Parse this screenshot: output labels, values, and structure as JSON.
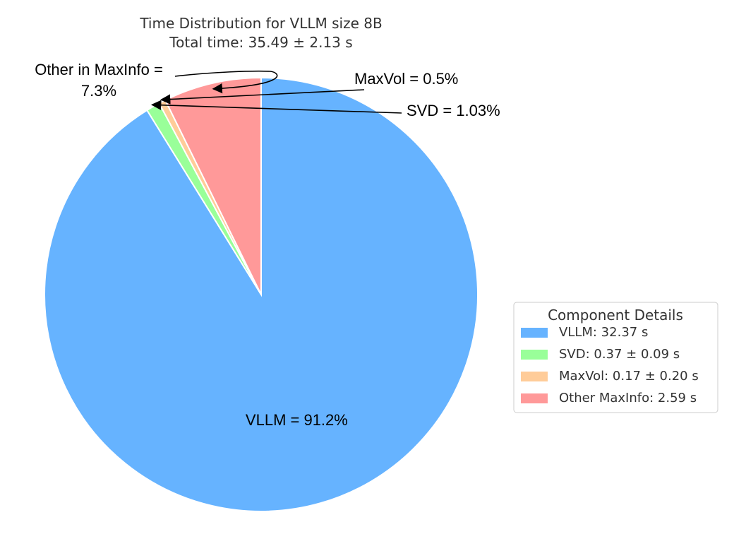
{
  "chart_data": {
    "type": "pie",
    "title": "Time Distribution for VLLM size 8B",
    "subtitle": "Total time: 35.49 ± 2.13 s",
    "start_angle_deg": 90,
    "direction": "clockwise",
    "slices": [
      {
        "name": "VLLM",
        "percent": 91.2,
        "color": "#66b3ff",
        "label": "VLLM  = 91.2%",
        "legend": "VLLM: 32.37 s",
        "label_style": "inside"
      },
      {
        "name": "SVD",
        "percent": 1.03,
        "color": "#99ff99",
        "label": "SVD = 1.03%",
        "legend": "SVD: 0.37 ± 0.09 s",
        "label_style": "arrow"
      },
      {
        "name": "MaxVol",
        "percent": 0.5,
        "color": "#ffcc99",
        "label": "MaxVol = 0.5%",
        "legend": "MaxVol: 0.17 ± 0.20 s",
        "label_style": "arrow"
      },
      {
        "name": "Other MaxInfo",
        "percent": 7.3,
        "color": "#ff9999",
        "label_lines": [
          "Other in MaxInfo =",
          "7.3%"
        ],
        "legend": "Other MaxInfo: 2.59 s",
        "label_style": "curved-arrow"
      }
    ],
    "legend": {
      "title": "Component Details",
      "placement": "right"
    }
  }
}
